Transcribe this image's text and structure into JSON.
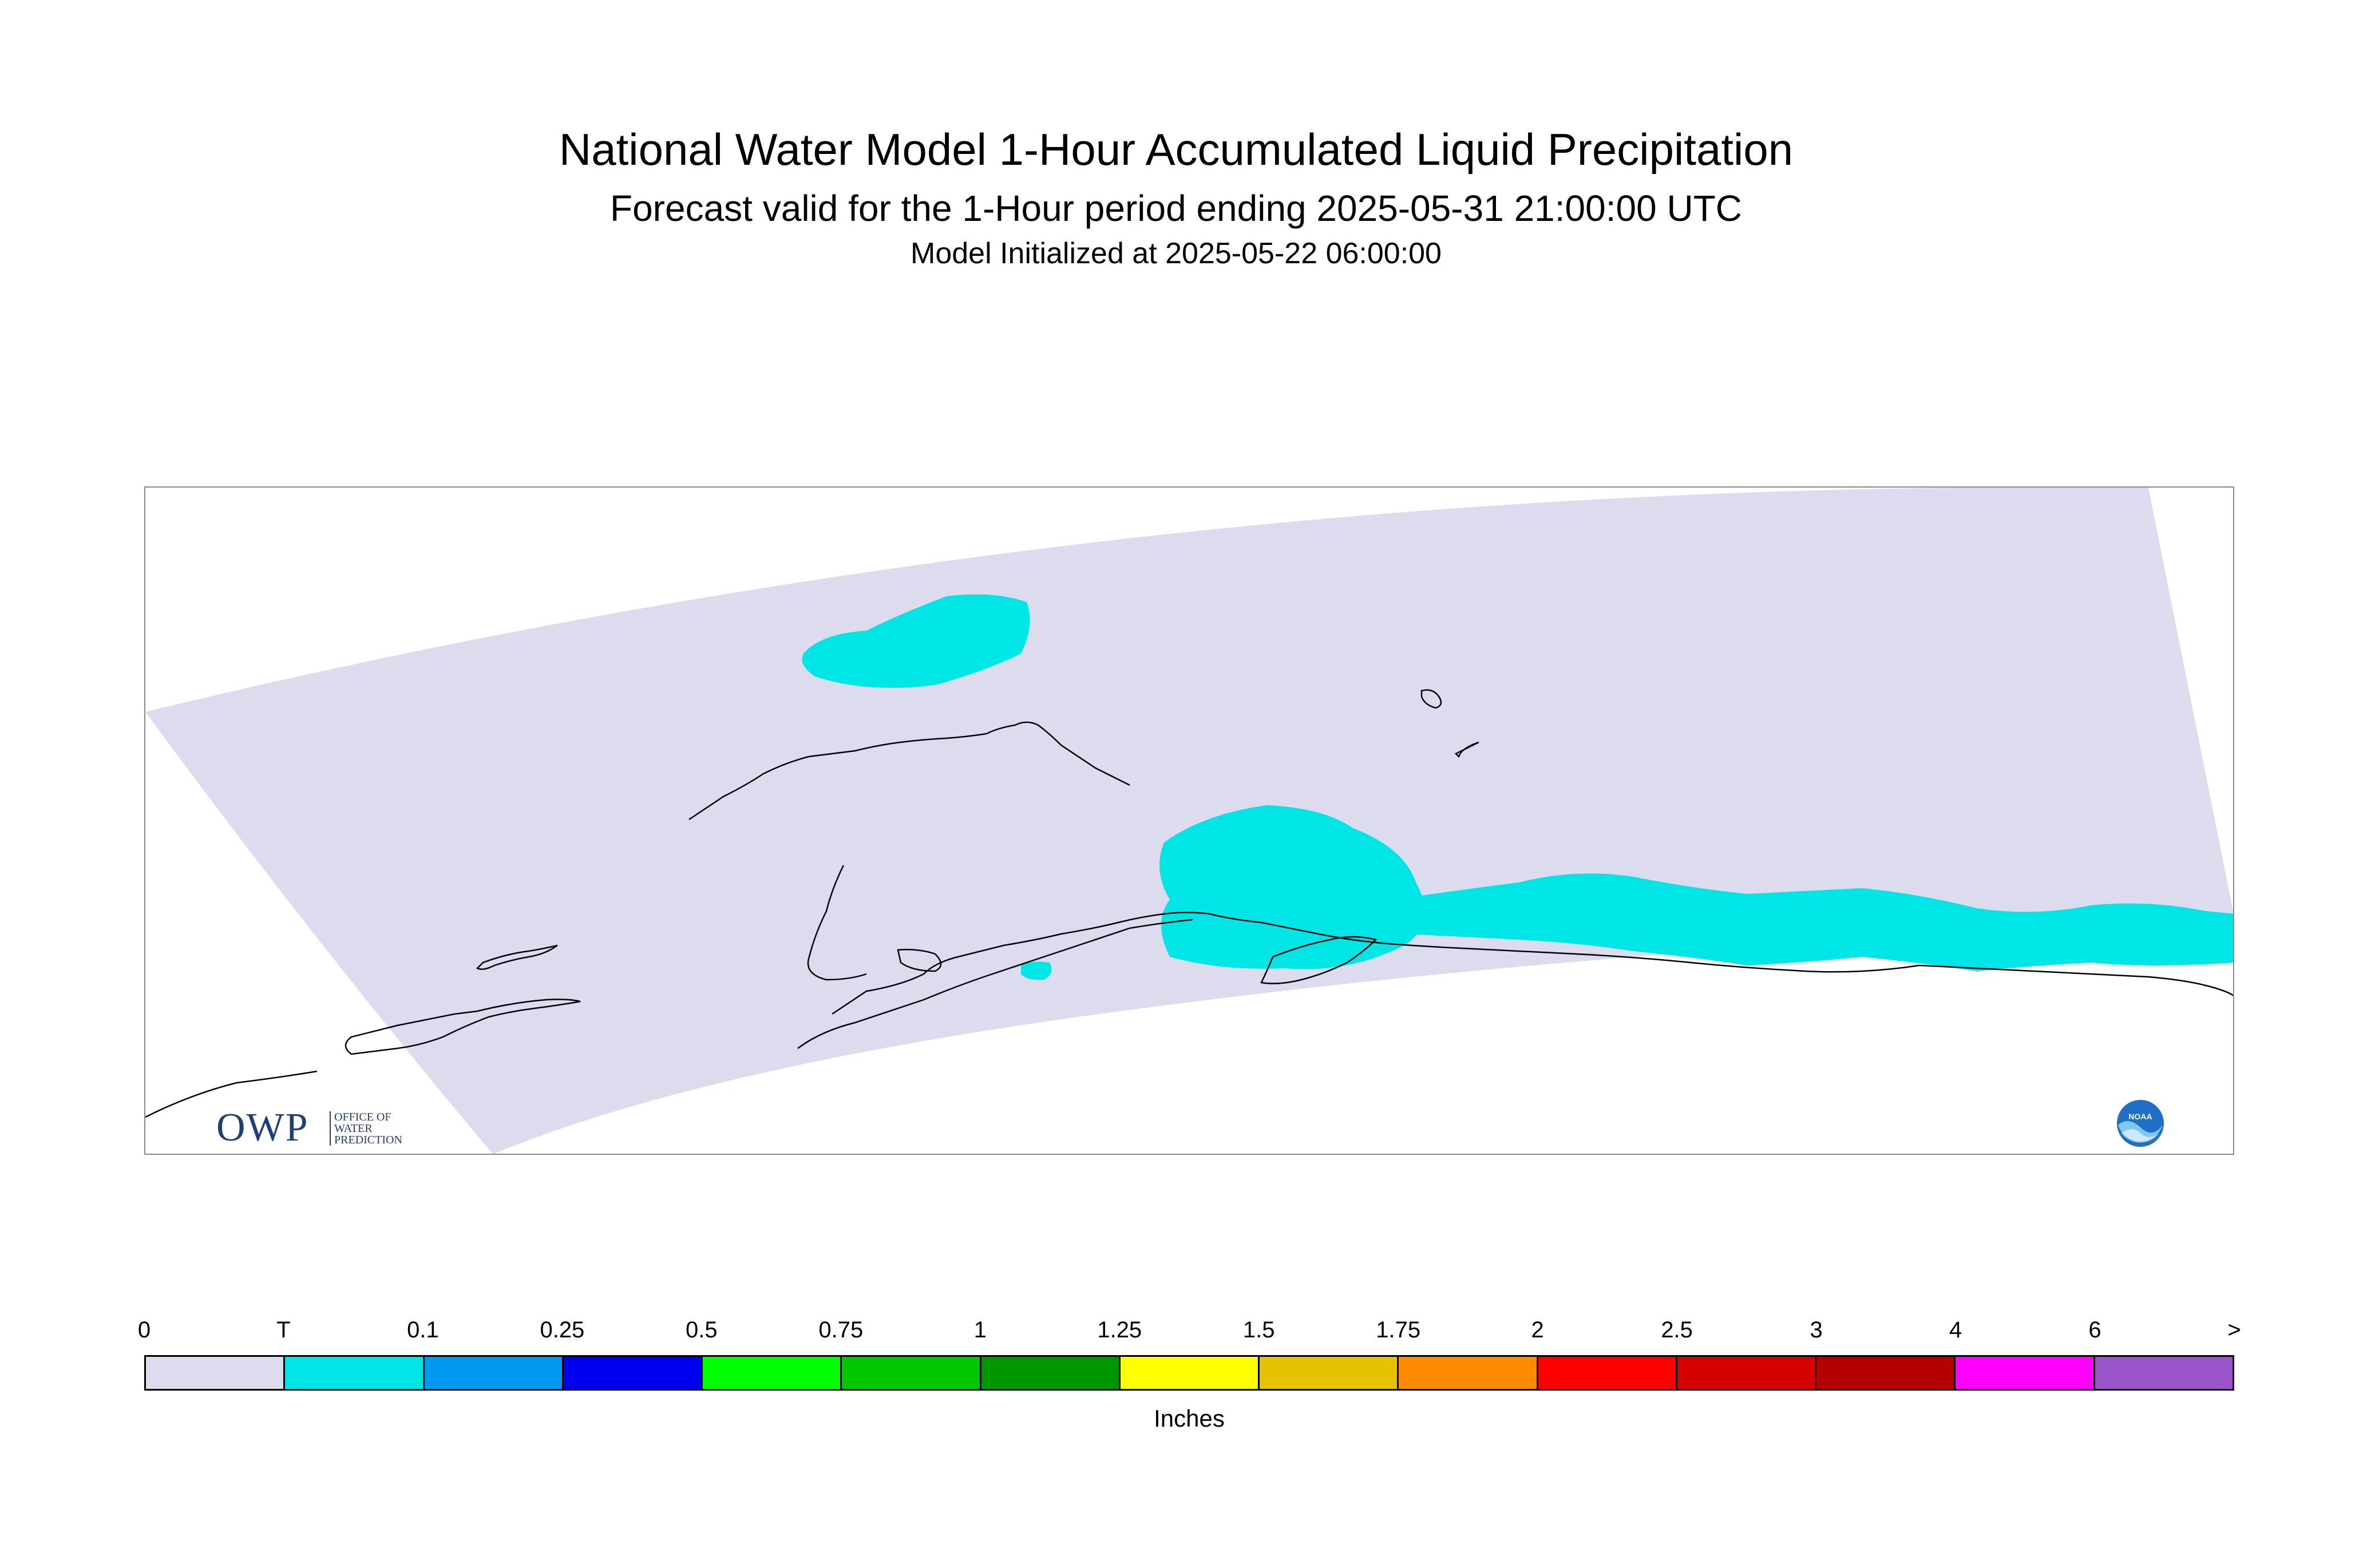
{
  "header": {
    "title": "National Water Model 1-Hour Accumulated Liquid Precipitation",
    "subtitle": "Forecast valid for the 1-Hour period ending 2025-05-31 21:00:00 UTC",
    "init_line": "Model Initialized at 2025-05-22 06:00:00"
  },
  "logos": {
    "owp_letters": "OWP",
    "owp_line1": "OFFICE OF",
    "owp_line2": "WATER",
    "owp_line3": "PREDICTION",
    "noaa_text": "NOAA"
  },
  "colors": {
    "domain_fill": "#dcdcee",
    "precip_fill": "#00e6e6",
    "coastline": "#000000",
    "frame": "#8a8a8a"
  },
  "colorbar": {
    "ticks": [
      "0",
      "T",
      "0.1",
      "0.25",
      "0.5",
      "0.75",
      "1",
      "1.25",
      "1.5",
      "1.75",
      "2",
      "2.5",
      "3",
      "4",
      "6",
      ">"
    ],
    "colors": [
      "#dcdcee",
      "#00e6e6",
      "#0099f2",
      "#0000f0",
      "#00ff00",
      "#00c800",
      "#009600",
      "#ffff00",
      "#e6c200",
      "#ff8c00",
      "#ff0000",
      "#d70000",
      "#b40000",
      "#ff00ff",
      "#9955c9"
    ],
    "units": "Inches"
  }
}
